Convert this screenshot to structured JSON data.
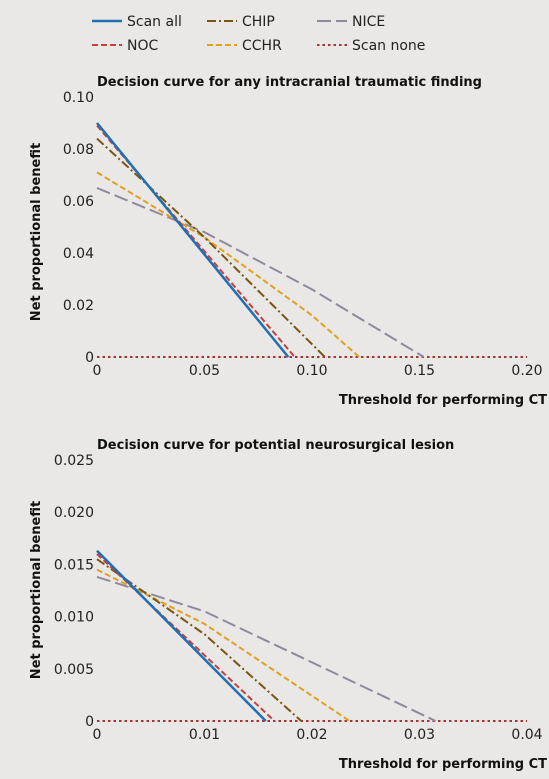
{
  "legend": {
    "items": [
      {
        "name": "Scan all",
        "color": "#1f6fb4",
        "dash": "solid"
      },
      {
        "name": "CHIP",
        "color": "#7a5510",
        "dash": "dashdot"
      },
      {
        "name": "NICE",
        "color": "#8e8a9e",
        "dash": "longdash"
      },
      {
        "name": "NOC",
        "color": "#c8403a",
        "dash": "dash"
      },
      {
        "name": "CCHR",
        "color": "#e0a020",
        "dash": "dash"
      },
      {
        "name": "Scan none",
        "color": "#a8322e",
        "dash": "dot"
      }
    ]
  },
  "chart_data": [
    {
      "type": "line",
      "title": "Decision curve for any intracranial traumatic finding",
      "xlabel": "Threshold for performing CT",
      "ylabel": "Net proportional benefit",
      "xlim": [
        0,
        0.2
      ],
      "ylim": [
        0,
        0.1
      ],
      "xticks": [
        "0",
        "0.05",
        "0.10",
        "0.15",
        "0.20"
      ],
      "yticks": [
        "0",
        "0.02",
        "0.04",
        "0.06",
        "0.08",
        "0.10"
      ],
      "xtick_values": [
        0,
        0.05,
        0.1,
        0.15,
        0.2
      ],
      "ytick_values": [
        0,
        0.02,
        0.04,
        0.06,
        0.08,
        0.1
      ],
      "grid": false,
      "series": [
        {
          "name": "Scan none",
          "x": [
            0,
            0.2
          ],
          "y": [
            0,
            0
          ]
        },
        {
          "name": "NICE",
          "x": [
            0,
            0.05,
            0.1,
            0.152
          ],
          "y": [
            0.065,
            0.048,
            0.026,
            0
          ]
        },
        {
          "name": "CCHR",
          "x": [
            0,
            0.05,
            0.1,
            0.122
          ],
          "y": [
            0.071,
            0.046,
            0.016,
            0
          ]
        },
        {
          "name": "CHIP",
          "x": [
            0,
            0.05,
            0.106
          ],
          "y": [
            0.084,
            0.046,
            0
          ]
        },
        {
          "name": "NOC",
          "x": [
            0,
            0.092
          ],
          "y": [
            0.089,
            0
          ]
        },
        {
          "name": "Scan all",
          "x": [
            0,
            0.089
          ],
          "y": [
            0.09,
            0
          ]
        }
      ]
    },
    {
      "type": "line",
      "title": "Decision curve for potential neurosurgical lesion",
      "xlabel": "Threshold for performing CT",
      "ylabel": "Net proportional benefit",
      "xlim": [
        0,
        0.04
      ],
      "ylim": [
        0,
        0.025
      ],
      "xticks": [
        "0",
        "0.01",
        "0.02",
        "0.03",
        "0.04"
      ],
      "yticks": [
        "0",
        "0.005",
        "0.010",
        "0.015",
        "0.020",
        "0.025"
      ],
      "xtick_values": [
        0,
        0.01,
        0.02,
        0.03,
        0.04
      ],
      "ytick_values": [
        0,
        0.005,
        0.01,
        0.015,
        0.02,
        0.025
      ],
      "grid": false,
      "series": [
        {
          "name": "Scan none",
          "x": [
            0,
            0.04
          ],
          "y": [
            0,
            0
          ]
        },
        {
          "name": "NICE",
          "x": [
            0,
            0.01,
            0.0315
          ],
          "y": [
            0.0138,
            0.0105,
            0
          ]
        },
        {
          "name": "CCHR",
          "x": [
            0,
            0.01,
            0.0235
          ],
          "y": [
            0.0145,
            0.0093,
            0
          ]
        },
        {
          "name": "CHIP",
          "x": [
            0,
            0.01,
            0.019
          ],
          "y": [
            0.0155,
            0.0083,
            0
          ]
        },
        {
          "name": "NOC",
          "x": [
            0,
            0.0165
          ],
          "y": [
            0.016,
            0
          ]
        },
        {
          "name": "Scan all",
          "x": [
            0,
            0.0157
          ],
          "y": [
            0.0163,
            0
          ]
        }
      ]
    }
  ]
}
